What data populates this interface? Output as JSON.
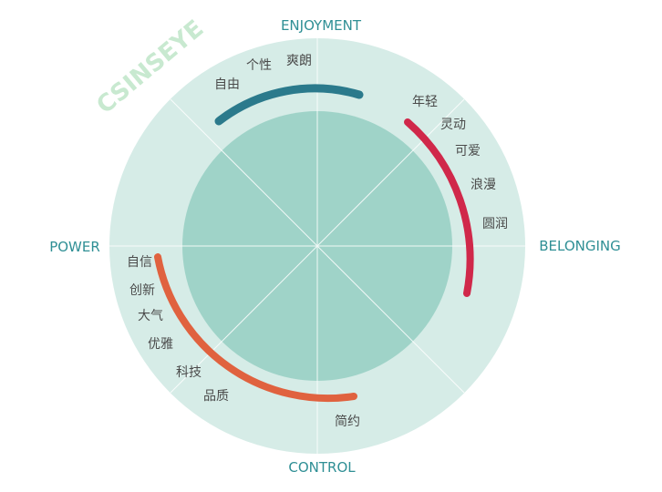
{
  "watermark": "CSINSEYE",
  "colors": {
    "outer_ring": "#d6ece7",
    "inner_circle": "#9fd3c8",
    "divider": "#ffffff",
    "axis_text": "#2f8f95",
    "word_text": "#4a4a4a",
    "enjoyment_arc": "#2b7a8c",
    "belonging_arc": "#d0284a",
    "power_control_arc": "#e0623f"
  },
  "axes": {
    "top": "ENJOYMENT",
    "right": "BELONGING",
    "bottom": "CONTROL",
    "left": "POWER"
  },
  "groups": [
    {
      "id": "enjoyment",
      "words": [
        "自由",
        "个性",
        "爽朗"
      ]
    },
    {
      "id": "belonging",
      "words": [
        "年轻",
        "灵动",
        "可爱",
        "浪漫",
        "圆润"
      ]
    },
    {
      "id": "power-control",
      "words": [
        "自信",
        "创新",
        "大气",
        "优雅",
        "科技",
        "品质",
        "简约"
      ]
    }
  ]
}
